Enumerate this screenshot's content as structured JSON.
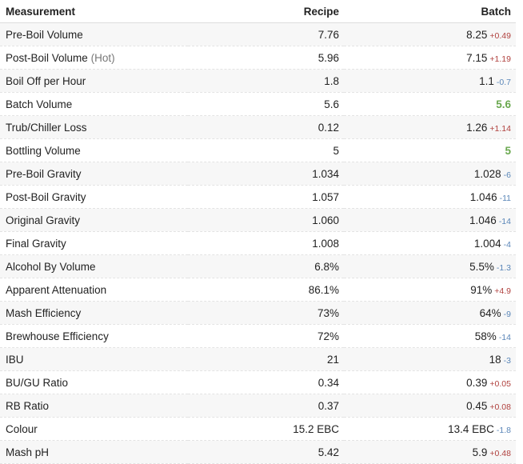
{
  "headers": {
    "measurement": "Measurement",
    "recipe": "Recipe",
    "batch": "Batch"
  },
  "rows": [
    {
      "label": "Pre-Boil Volume",
      "note": "",
      "recipe": "7.76",
      "batch": "8.25",
      "diff": "+0.49",
      "dir": "up"
    },
    {
      "label": "Post-Boil Volume",
      "note": "(Hot)",
      "recipe": "5.96",
      "batch": "7.15",
      "diff": "+1.19",
      "dir": "up"
    },
    {
      "label": "Boil Off per Hour",
      "note": "",
      "recipe": "1.8",
      "batch": "1.1",
      "diff": "-0.7",
      "dir": "down"
    },
    {
      "label": "Batch Volume",
      "note": "",
      "recipe": "5.6",
      "batch": "5.6",
      "diff": "",
      "dir": "match"
    },
    {
      "label": "Trub/Chiller Loss",
      "note": "",
      "recipe": "0.12",
      "batch": "1.26",
      "diff": "+1.14",
      "dir": "up"
    },
    {
      "label": "Bottling Volume",
      "note": "",
      "recipe": "5",
      "batch": "5",
      "diff": "",
      "dir": "match"
    },
    {
      "label": "Pre-Boil Gravity",
      "note": "",
      "recipe": "1.034",
      "batch": "1.028",
      "diff": "-6",
      "dir": "down"
    },
    {
      "label": "Post-Boil Gravity",
      "note": "",
      "recipe": "1.057",
      "batch": "1.046",
      "diff": "-11",
      "dir": "down"
    },
    {
      "label": "Original Gravity",
      "note": "",
      "recipe": "1.060",
      "batch": "1.046",
      "diff": "-14",
      "dir": "down"
    },
    {
      "label": "Final Gravity",
      "note": "",
      "recipe": "1.008",
      "batch": "1.004",
      "diff": "-4",
      "dir": "down"
    },
    {
      "label": "Alcohol By Volume",
      "note": "",
      "recipe": "6.8%",
      "batch": "5.5%",
      "diff": "-1.3",
      "dir": "down"
    },
    {
      "label": "Apparent Attenuation",
      "note": "",
      "recipe": "86.1%",
      "batch": "91%",
      "diff": "+4.9",
      "dir": "up"
    },
    {
      "label": "Mash Efficiency",
      "note": "",
      "recipe": "73%",
      "batch": "64%",
      "diff": "-9",
      "dir": "down"
    },
    {
      "label": "Brewhouse Efficiency",
      "note": "",
      "recipe": "72%",
      "batch": "58%",
      "diff": "-14",
      "dir": "down"
    },
    {
      "label": "IBU",
      "note": "",
      "recipe": "21",
      "batch": "18",
      "diff": "-3",
      "dir": "down"
    },
    {
      "label": "BU/GU Ratio",
      "note": "",
      "recipe": "0.34",
      "batch": "0.39",
      "diff": "+0.05",
      "dir": "up"
    },
    {
      "label": "RB Ratio",
      "note": "",
      "recipe": "0.37",
      "batch": "0.45",
      "diff": "+0.08",
      "dir": "up"
    },
    {
      "label": "Colour",
      "note": "",
      "recipe": "15.2 EBC",
      "batch": "13.4 EBC",
      "diff": "-1.8",
      "dir": "down"
    },
    {
      "label": "Mash pH",
      "note": "",
      "recipe": "5.42",
      "batch": "5.9",
      "diff": "+0.48",
      "dir": "up"
    }
  ],
  "colors": {
    "up": "#b0413e",
    "down": "#5a86b8",
    "match": "#6aa84f"
  }
}
